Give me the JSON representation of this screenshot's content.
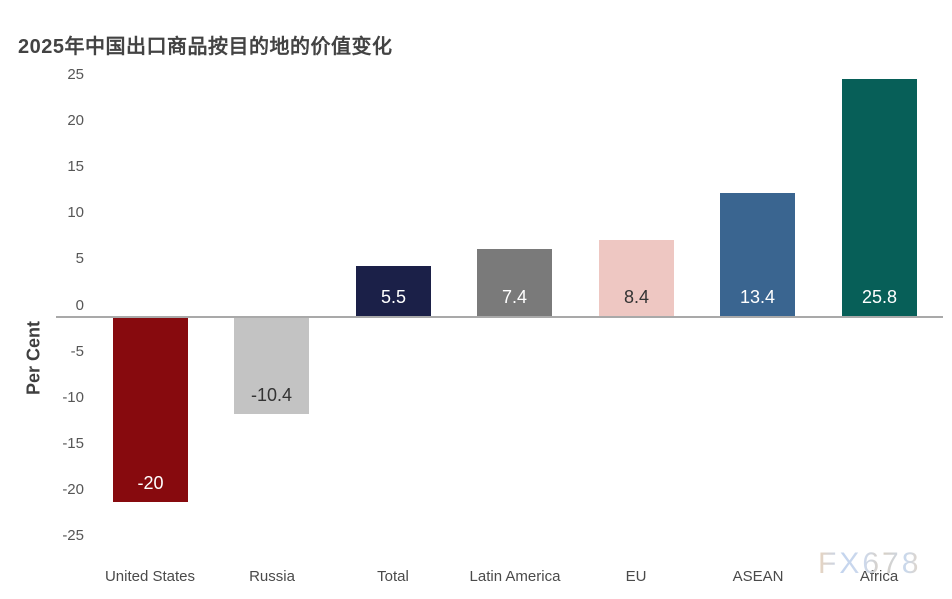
{
  "page": {
    "background": "#ffffff"
  },
  "watermark": {
    "text": "FX678"
  },
  "chart_data": {
    "type": "bar",
    "title": "2025年中国出口商品按目的地的价值变化",
    "xlabel": "",
    "ylabel": "Per Cent",
    "ylim": [
      -25,
      25
    ],
    "yticks": [
      25,
      20,
      15,
      10,
      5,
      0,
      -5,
      -10,
      -15,
      -20,
      -25
    ],
    "grid": false,
    "legend": false,
    "categories": [
      "United States",
      "Russia",
      "Total",
      "Latin America",
      "EU",
      "ASEAN",
      "Africa"
    ],
    "values": [
      -20,
      -10.4,
      5.5,
      7.4,
      8.4,
      13.4,
      25.8
    ],
    "value_labels": [
      "-20",
      "-10.4",
      "5.5",
      "7.4",
      "8.4",
      "13.4",
      "25.8"
    ],
    "bar_colors": [
      "#870a0e",
      "#c3c3c3",
      "#1b2048",
      "#7a7a7a",
      "#eec7c2",
      "#3a6590",
      "#075f58"
    ],
    "value_label_colors": [
      "#ffffff",
      "#333333",
      "#ffffff",
      "#ffffff",
      "#333333",
      "#ffffff",
      "#ffffff"
    ],
    "axis_line_color": "#a9a9a9",
    "tick_label_color": "#565656",
    "category_label_color": "#4a4a4a",
    "title_color": "#434343"
  }
}
